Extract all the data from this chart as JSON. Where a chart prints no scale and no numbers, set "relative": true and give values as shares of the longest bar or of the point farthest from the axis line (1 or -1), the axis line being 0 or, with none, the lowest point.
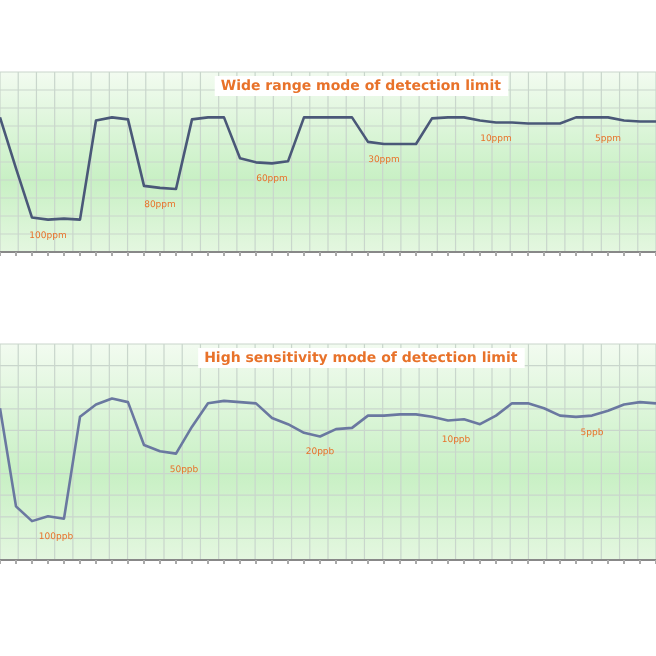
{
  "chart_data": [
    {
      "type": "line",
      "title": "Wide range mode of detection limit",
      "relative": true,
      "grid": true,
      "categories": [
        null,
        null,
        null,
        null,
        null,
        null,
        null,
        null,
        null,
        null,
        null,
        null,
        null,
        null,
        null,
        null,
        null,
        null,
        null,
        null,
        null,
        null,
        null,
        null,
        null,
        null,
        null,
        null,
        null,
        null,
        null,
        null,
        null,
        null,
        null,
        null,
        null,
        null,
        null,
        null,
        null,
        null
      ],
      "series": [
        {
          "color": "#4a5878",
          "values": [
            1,
            0.5,
            0.02,
            0,
            0.01,
            0,
            0.97,
            1,
            0.98,
            0.33,
            0.31,
            0.3,
            0.98,
            1,
            1,
            0.6,
            0.56,
            0.55,
            0.57,
            1,
            1,
            1,
            1,
            0.76,
            0.74,
            0.74,
            0.74,
            0.99,
            1,
            1,
            0.97,
            0.95,
            0.95,
            0.94,
            0.94,
            0.94,
            1,
            1,
            1,
            0.97,
            0.96,
            0.96
          ]
        }
      ],
      "annotations": [
        "100ppm",
        "80ppm",
        "60ppm",
        "30ppm",
        "10ppm",
        "5ppm"
      ]
    },
    {
      "type": "line",
      "title": "High sensitivity mode of detection limit",
      "relative": true,
      "grid": true,
      "categories": [
        null,
        null,
        null,
        null,
        null,
        null,
        null,
        null,
        null,
        null,
        null,
        null,
        null,
        null,
        null,
        null,
        null,
        null,
        null,
        null,
        null,
        null,
        null,
        null,
        null,
        null,
        null,
        null,
        null,
        null,
        null,
        null,
        null,
        null,
        null,
        null,
        null,
        null,
        null,
        null,
        null,
        null
      ],
      "series": [
        {
          "color": "#6a78a0",
          "values": [
            0.92,
            0.12,
            0,
            0.04,
            0.02,
            0.85,
            0.95,
            1,
            0.97,
            0.62,
            0.57,
            0.55,
            0.77,
            0.96,
            0.98,
            0.97,
            0.96,
            0.84,
            0.79,
            0.72,
            0.69,
            0.75,
            0.76,
            0.86,
            0.86,
            0.87,
            0.87,
            0.85,
            0.82,
            0.83,
            0.79,
            0.86,
            0.96,
            0.96,
            0.92,
            0.86,
            0.85,
            0.86,
            0.9,
            0.95,
            0.97,
            0.96
          ]
        }
      ],
      "annotations": [
        "100ppb",
        "50ppb",
        "20ppb",
        "10ppb",
        "5ppb"
      ]
    }
  ]
}
